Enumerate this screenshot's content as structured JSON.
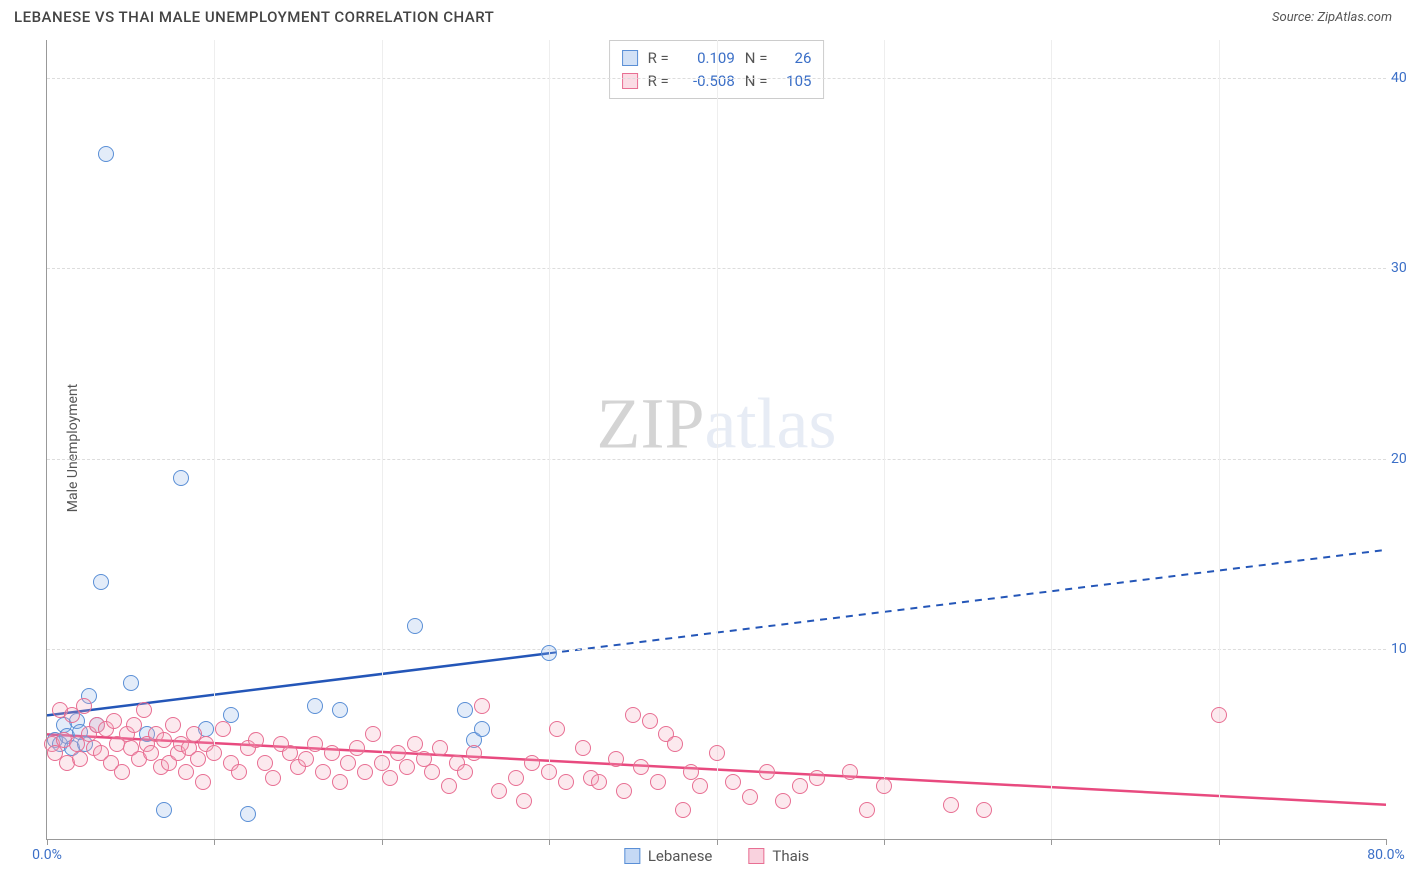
{
  "title": "LEBANESE VS THAI MALE UNEMPLOYMENT CORRELATION CHART",
  "source_label": "Source:",
  "source_name": "ZipAtlas.com",
  "ylabel": "Male Unemployment",
  "watermark_dark": "ZIP",
  "watermark_light": "atlas",
  "chart": {
    "type": "scatter",
    "xlim": [
      0,
      80
    ],
    "ylim": [
      0,
      42
    ],
    "x_ticks": [
      0,
      10,
      20,
      30,
      40,
      50,
      60,
      70,
      80
    ],
    "x_tick_labels": [
      "0.0%",
      "",
      "",
      "",
      "",
      "",
      "",
      "",
      "80.0%"
    ],
    "y_ticks": [
      10,
      20,
      30,
      40
    ],
    "y_tick_labels": [
      "10.0%",
      "20.0%",
      "30.0%",
      "40.0%"
    ],
    "xtick_color": "#3b6fc7",
    "ytick_color": "#3b6fc7",
    "grid_color": "#dddddd",
    "background_color": "#ffffff",
    "point_radius": 8,
    "point_border_width": 1.5,
    "point_fill_opacity": 0.25,
    "label_fontsize": 14,
    "tick_fontsize": 14
  },
  "series": [
    {
      "name": "Lebanese",
      "color": "#8fb4e8",
      "border_color": "#5a8fd6",
      "trend_color": "#2456b8",
      "trend_width": 2.5,
      "trend_solid_xmax": 30,
      "trend_y_at_x0": 6.5,
      "trend_y_at_xmax": 15.2,
      "stats": {
        "R": "0.109",
        "N": "26"
      },
      "points": [
        [
          0.5,
          5.2
        ],
        [
          0.8,
          5.0
        ],
        [
          1.0,
          6.0
        ],
        [
          1.2,
          5.4
        ],
        [
          1.5,
          4.8
        ],
        [
          1.8,
          6.2
        ],
        [
          2.0,
          5.6
        ],
        [
          2.3,
          5.0
        ],
        [
          2.5,
          7.5
        ],
        [
          3.0,
          6.0
        ],
        [
          3.2,
          13.5
        ],
        [
          3.5,
          36.0
        ],
        [
          5.0,
          8.2
        ],
        [
          6.0,
          5.5
        ],
        [
          7.0,
          1.5
        ],
        [
          8.0,
          19.0
        ],
        [
          9.5,
          5.8
        ],
        [
          11.0,
          6.5
        ],
        [
          12.0,
          1.3
        ],
        [
          16.0,
          7.0
        ],
        [
          17.5,
          6.8
        ],
        [
          22.0,
          11.2
        ],
        [
          25.0,
          6.8
        ],
        [
          25.5,
          5.2
        ],
        [
          26.0,
          5.8
        ],
        [
          30.0,
          9.8
        ]
      ]
    },
    {
      "name": "Thais",
      "color": "#f5a8bd",
      "border_color": "#e86f93",
      "trend_color": "#e84a7f",
      "trend_width": 2.5,
      "trend_solid_xmax": 80,
      "trend_y_at_x0": 5.5,
      "trend_y_at_xmax": 1.8,
      "stats": {
        "R": "-0.508",
        "N": "105"
      },
      "points": [
        [
          0.3,
          5.0
        ],
        [
          0.5,
          4.5
        ],
        [
          0.8,
          6.8
        ],
        [
          1.0,
          5.2
        ],
        [
          1.2,
          4.0
        ],
        [
          1.5,
          6.5
        ],
        [
          1.8,
          5.0
        ],
        [
          2.0,
          4.2
        ],
        [
          2.2,
          7.0
        ],
        [
          2.5,
          5.5
        ],
        [
          2.8,
          4.8
        ],
        [
          3.0,
          6.0
        ],
        [
          3.2,
          4.5
        ],
        [
          3.5,
          5.8
        ],
        [
          3.8,
          4.0
        ],
        [
          4.0,
          6.2
        ],
        [
          4.2,
          5.0
        ],
        [
          4.5,
          3.5
        ],
        [
          4.8,
          5.5
        ],
        [
          5.0,
          4.8
        ],
        [
          5.2,
          6.0
        ],
        [
          5.5,
          4.2
        ],
        [
          5.8,
          6.8
        ],
        [
          6.0,
          5.0
        ],
        [
          6.2,
          4.5
        ],
        [
          6.5,
          5.5
        ],
        [
          6.8,
          3.8
        ],
        [
          7.0,
          5.2
        ],
        [
          7.3,
          4.0
        ],
        [
          7.5,
          6.0
        ],
        [
          7.8,
          4.5
        ],
        [
          8.0,
          5.0
        ],
        [
          8.3,
          3.5
        ],
        [
          8.5,
          4.8
        ],
        [
          8.8,
          5.5
        ],
        [
          9.0,
          4.2
        ],
        [
          9.3,
          3.0
        ],
        [
          9.5,
          5.0
        ],
        [
          10.0,
          4.5
        ],
        [
          10.5,
          5.8
        ],
        [
          11.0,
          4.0
        ],
        [
          11.5,
          3.5
        ],
        [
          12.0,
          4.8
        ],
        [
          12.5,
          5.2
        ],
        [
          13.0,
          4.0
        ],
        [
          13.5,
          3.2
        ],
        [
          14.0,
          5.0
        ],
        [
          14.5,
          4.5
        ],
        [
          15.0,
          3.8
        ],
        [
          15.5,
          4.2
        ],
        [
          16.0,
          5.0
        ],
        [
          16.5,
          3.5
        ],
        [
          17.0,
          4.5
        ],
        [
          17.5,
          3.0
        ],
        [
          18.0,
          4.0
        ],
        [
          18.5,
          4.8
        ],
        [
          19.0,
          3.5
        ],
        [
          19.5,
          5.5
        ],
        [
          20.0,
          4.0
        ],
        [
          20.5,
          3.2
        ],
        [
          21.0,
          4.5
        ],
        [
          21.5,
          3.8
        ],
        [
          22.0,
          5.0
        ],
        [
          22.5,
          4.2
        ],
        [
          23.0,
          3.5
        ],
        [
          23.5,
          4.8
        ],
        [
          24.0,
          2.8
        ],
        [
          24.5,
          4.0
        ],
        [
          25.0,
          3.5
        ],
        [
          25.5,
          4.5
        ],
        [
          26.0,
          7.0
        ],
        [
          27.0,
          2.5
        ],
        [
          28.0,
          3.2
        ],
        [
          28.5,
          2.0
        ],
        [
          29.0,
          4.0
        ],
        [
          30.0,
          3.5
        ],
        [
          30.5,
          5.8
        ],
        [
          31.0,
          3.0
        ],
        [
          32.0,
          4.8
        ],
        [
          32.5,
          3.2
        ],
        [
          33.0,
          3.0
        ],
        [
          34.0,
          4.2
        ],
        [
          34.5,
          2.5
        ],
        [
          35.0,
          6.5
        ],
        [
          35.5,
          3.8
        ],
        [
          36.0,
          6.2
        ],
        [
          36.5,
          3.0
        ],
        [
          37.0,
          5.5
        ],
        [
          37.5,
          5.0
        ],
        [
          38.0,
          1.5
        ],
        [
          38.5,
          3.5
        ],
        [
          39.0,
          2.8
        ],
        [
          40.0,
          4.5
        ],
        [
          41.0,
          3.0
        ],
        [
          42.0,
          2.2
        ],
        [
          43.0,
          3.5
        ],
        [
          44.0,
          2.0
        ],
        [
          45.0,
          2.8
        ],
        [
          46.0,
          3.2
        ],
        [
          48.0,
          3.5
        ],
        [
          49.0,
          1.5
        ],
        [
          50.0,
          2.8
        ],
        [
          54.0,
          1.8
        ],
        [
          56.0,
          1.5
        ],
        [
          70.0,
          6.5
        ]
      ]
    }
  ],
  "stats_box": {
    "R_label": "R =",
    "N_label": "N ="
  },
  "bottom_legend": [
    {
      "label": "Lebanese",
      "fill": "#c5d9f5",
      "border": "#5a8fd6"
    },
    {
      "label": "Thais",
      "fill": "#f9d2de",
      "border": "#e86f93"
    }
  ]
}
